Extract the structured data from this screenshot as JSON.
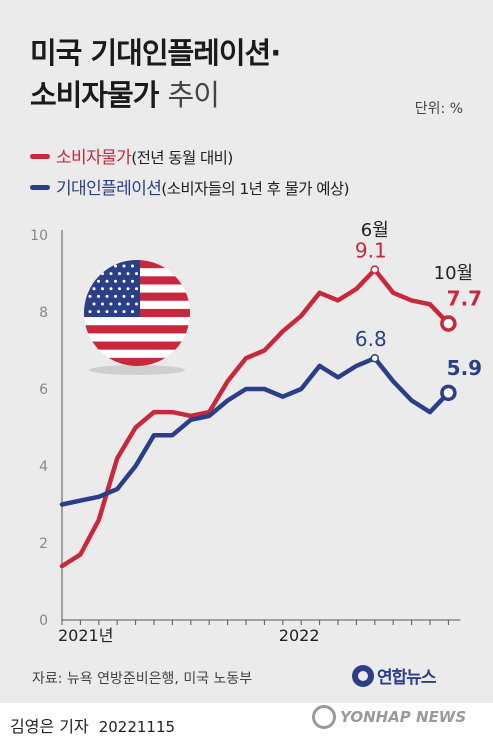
{
  "header": {
    "title_line1": "미국 기대인플레이션·",
    "title_line2_bold": "소비자물가",
    "title_line2_light": "추이",
    "unit": "단위: %"
  },
  "legend": [
    {
      "name": "소비자물가",
      "note": "(전년 동월 대비)",
      "color": "#c8283c"
    },
    {
      "name": "기대인플레이션",
      "note": "(소비자들의 1년 후 물가 예상)",
      "color": "#2b3f88"
    }
  ],
  "chart_data": {
    "type": "line",
    "x": [
      "2021-01",
      "2021-02",
      "2021-03",
      "2021-04",
      "2021-05",
      "2021-06",
      "2021-07",
      "2021-08",
      "2021-09",
      "2021-10",
      "2021-11",
      "2021-12",
      "2022-01",
      "2022-02",
      "2022-03",
      "2022-04",
      "2022-05",
      "2022-06",
      "2022-07",
      "2022-08",
      "2022-09",
      "2022-10"
    ],
    "x_tick_labels": [
      {
        "at": "2021-01",
        "label": "2021년"
      },
      {
        "at": "2022-01",
        "label": "2022"
      }
    ],
    "ylim": [
      0,
      10
    ],
    "y_ticks": [
      0,
      2,
      4,
      6,
      8,
      10
    ],
    "grid": false,
    "series": [
      {
        "name": "소비자물가",
        "color": "#c8283c",
        "values": [
          1.4,
          1.7,
          2.6,
          4.2,
          5.0,
          5.4,
          5.4,
          5.3,
          5.4,
          6.2,
          6.8,
          7.0,
          7.5,
          7.9,
          8.5,
          8.3,
          8.6,
          9.1,
          8.5,
          8.3,
          8.2,
          7.7
        ]
      },
      {
        "name": "기대인플레이션",
        "color": "#2b3f88",
        "values": [
          3.0,
          3.1,
          3.2,
          3.4,
          4.0,
          4.8,
          4.8,
          5.2,
          5.3,
          5.7,
          6.0,
          6.0,
          5.8,
          6.0,
          6.6,
          6.3,
          6.6,
          6.8,
          6.2,
          5.7,
          5.4,
          5.9
        ]
      }
    ],
    "annotations": [
      {
        "label": "6월",
        "x": "2022-06"
      },
      {
        "label": "10월",
        "x": "2022-10"
      }
    ],
    "data_labels": [
      {
        "series": 0,
        "x": "2022-06",
        "text": "9.1"
      },
      {
        "series": 0,
        "x": "2022-10",
        "text": "7.7"
      },
      {
        "series": 1,
        "x": "2022-06",
        "text": "6.8"
      },
      {
        "series": 1,
        "x": "2022-10",
        "text": "5.9"
      }
    ]
  },
  "footer": {
    "source": "자료: 뉴욕 연방준비은행, 미국 노동부",
    "logo_text": "연합뉴스",
    "credit_name": "김영은 기자",
    "credit_date": "20221115",
    "watermark": "YONHAP NEWS"
  }
}
